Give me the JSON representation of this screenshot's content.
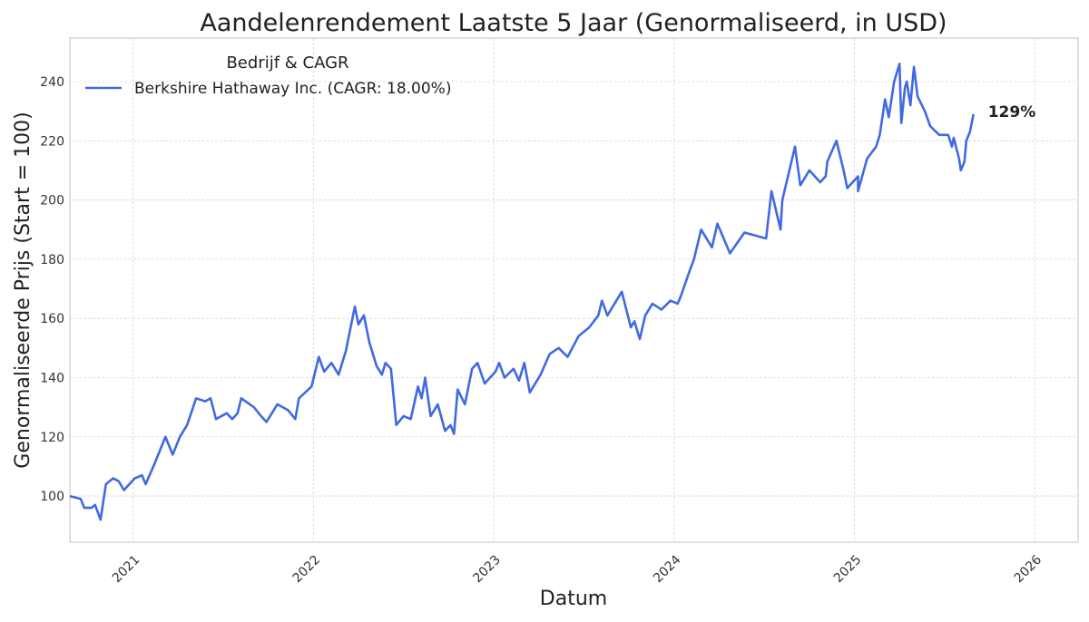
{
  "chart_data": {
    "type": "line",
    "title": "Aandelenrendement Laatste 5 Jaar (Genormaliseerd, in USD)",
    "xlabel": "Datum",
    "ylabel": "Genormaliseerde Prijs (Start = 100)",
    "xlim": [
      2020.65,
      2026.24
    ],
    "ylim": [
      84.4,
      254.7
    ],
    "grid": true,
    "x_ticks": [
      2021,
      2022,
      2023,
      2024,
      2025,
      2026
    ],
    "x_tick_labels": [
      "2021",
      "2022",
      "2023",
      "2024",
      "2025",
      "2026"
    ],
    "y_ticks": [
      100,
      120,
      140,
      160,
      180,
      200,
      220,
      240
    ],
    "y_tick_labels": [
      "100",
      "120",
      "140",
      "160",
      "180",
      "200",
      "220",
      "240"
    ],
    "legend": {
      "title": "Bedrijf & CAGR",
      "placement": "top-left",
      "entries": [
        "Berkshire Hathaway Inc. (CAGR: 18.00%)"
      ]
    },
    "annotation": "129%",
    "series": [
      {
        "name": "Berkshire Hathaway Inc. (CAGR: 18.00%)",
        "color": "#4169e1",
        "points": [
          [
            2020.65,
            100
          ],
          [
            2020.71,
            99
          ],
          [
            2020.73,
            96
          ],
          [
            2020.77,
            96
          ],
          [
            2020.79,
            97
          ],
          [
            2020.82,
            92
          ],
          [
            2020.85,
            104
          ],
          [
            2020.89,
            106
          ],
          [
            2020.92,
            105
          ],
          [
            2020.95,
            102
          ],
          [
            2021.01,
            106
          ],
          [
            2021.05,
            107
          ],
          [
            2021.07,
            104
          ],
          [
            2021.12,
            111
          ],
          [
            2021.18,
            120
          ],
          [
            2021.22,
            114
          ],
          [
            2021.26,
            120
          ],
          [
            2021.3,
            124
          ],
          [
            2021.35,
            133
          ],
          [
            2021.4,
            132
          ],
          [
            2021.43,
            133
          ],
          [
            2021.46,
            126
          ],
          [
            2021.52,
            128
          ],
          [
            2021.55,
            126
          ],
          [
            2021.58,
            128
          ],
          [
            2021.6,
            133
          ],
          [
            2021.67,
            130
          ],
          [
            2021.71,
            127
          ],
          [
            2021.74,
            125
          ],
          [
            2021.8,
            131
          ],
          [
            2021.86,
            129
          ],
          [
            2021.9,
            126
          ],
          [
            2021.92,
            133
          ],
          [
            2021.99,
            137
          ],
          [
            2022.03,
            147
          ],
          [
            2022.06,
            142
          ],
          [
            2022.1,
            145
          ],
          [
            2022.14,
            141
          ],
          [
            2022.18,
            149
          ],
          [
            2022.23,
            164
          ],
          [
            2022.25,
            158
          ],
          [
            2022.28,
            161
          ],
          [
            2022.31,
            152
          ],
          [
            2022.35,
            144
          ],
          [
            2022.38,
            141
          ],
          [
            2022.4,
            145
          ],
          [
            2022.43,
            143
          ],
          [
            2022.46,
            124
          ],
          [
            2022.5,
            127
          ],
          [
            2022.54,
            126
          ],
          [
            2022.58,
            137
          ],
          [
            2022.6,
            133
          ],
          [
            2022.62,
            140
          ],
          [
            2022.65,
            127
          ],
          [
            2022.69,
            131
          ],
          [
            2022.73,
            122
          ],
          [
            2022.76,
            124
          ],
          [
            2022.78,
            121
          ],
          [
            2022.8,
            136
          ],
          [
            2022.84,
            131
          ],
          [
            2022.88,
            143
          ],
          [
            2022.91,
            145
          ],
          [
            2022.95,
            138
          ],
          [
            2023.01,
            142
          ],
          [
            2023.03,
            145
          ],
          [
            2023.06,
            140
          ],
          [
            2023.11,
            143
          ],
          [
            2023.14,
            139
          ],
          [
            2023.17,
            145
          ],
          [
            2023.2,
            135
          ],
          [
            2023.26,
            141
          ],
          [
            2023.31,
            148
          ],
          [
            2023.36,
            150
          ],
          [
            2023.41,
            147
          ],
          [
            2023.47,
            154
          ],
          [
            2023.53,
            157
          ],
          [
            2023.58,
            161
          ],
          [
            2023.6,
            166
          ],
          [
            2023.63,
            161
          ],
          [
            2023.68,
            166
          ],
          [
            2023.71,
            169
          ],
          [
            2023.76,
            157
          ],
          [
            2023.78,
            159
          ],
          [
            2023.81,
            153
          ],
          [
            2023.84,
            161
          ],
          [
            2023.88,
            165
          ],
          [
            2023.93,
            163
          ],
          [
            2023.98,
            166
          ],
          [
            2024.02,
            165
          ],
          [
            2024.04,
            168
          ],
          [
            2024.08,
            175
          ],
          [
            2024.11,
            180
          ],
          [
            2024.15,
            190
          ],
          [
            2024.21,
            184
          ],
          [
            2024.24,
            192
          ],
          [
            2024.31,
            182
          ],
          [
            2024.39,
            189
          ],
          [
            2024.51,
            187
          ],
          [
            2024.54,
            203
          ],
          [
            2024.59,
            190
          ],
          [
            2024.6,
            200
          ],
          [
            2024.67,
            218
          ],
          [
            2024.7,
            205
          ],
          [
            2024.75,
            210
          ],
          [
            2024.81,
            206
          ],
          [
            2024.84,
            208
          ],
          [
            2024.85,
            213
          ],
          [
            2024.9,
            220
          ],
          [
            2024.94,
            210
          ],
          [
            2024.96,
            204
          ],
          [
            2025.02,
            208
          ],
          [
            2025.02,
            203
          ],
          [
            2025.07,
            214
          ],
          [
            2025.12,
            218
          ],
          [
            2025.14,
            222
          ],
          [
            2025.17,
            234
          ],
          [
            2025.19,
            228
          ],
          [
            2025.22,
            240
          ],
          [
            2025.25,
            246
          ],
          [
            2025.26,
            226
          ],
          [
            2025.28,
            238
          ],
          [
            2025.29,
            240
          ],
          [
            2025.31,
            232
          ],
          [
            2025.33,
            245
          ],
          [
            2025.35,
            235
          ],
          [
            2025.39,
            230
          ],
          [
            2025.42,
            225
          ],
          [
            2025.47,
            222
          ],
          [
            2025.52,
            222
          ],
          [
            2025.54,
            218
          ],
          [
            2025.55,
            221
          ],
          [
            2025.58,
            214
          ],
          [
            2025.59,
            210
          ],
          [
            2025.61,
            213
          ],
          [
            2025.62,
            220
          ],
          [
            2025.64,
            223
          ],
          [
            2025.66,
            229
          ]
        ]
      }
    ]
  }
}
